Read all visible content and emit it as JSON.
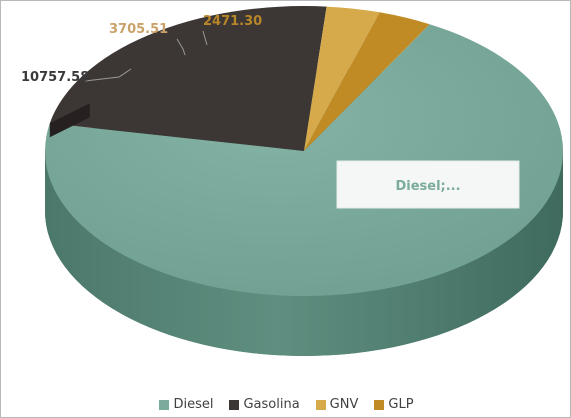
{
  "chart_data": {
    "type": "pie",
    "categories": [
      "Diesel",
      "Gasolina",
      "GNV",
      "GLP"
    ],
    "values": [
      null,
      10757.58,
      3705.51,
      2471.3
    ],
    "data_labels": [
      "Diesel;...",
      "10757.58",
      "3705.51",
      "2471.30"
    ],
    "colors": [
      "#7aab9c",
      "#3c3634",
      "#d6aa4b",
      "#c08a25"
    ],
    "label_colors": [
      "#7aab9c",
      "#3a3a3a",
      "#c9a26a",
      "#b8862a"
    ],
    "style": "3d",
    "legend_position": "bottom"
  }
}
